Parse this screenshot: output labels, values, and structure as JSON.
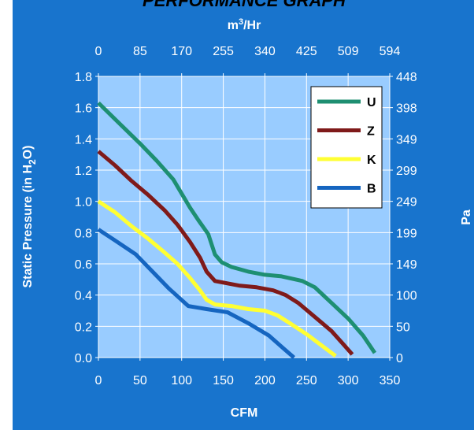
{
  "title": "PERFORMANCE GRAPH",
  "colors": {
    "frame_bg": "#1874CD",
    "plot_bg": "#99CCFF",
    "grid": "#ffffff",
    "legend_bg": "#ffffff"
  },
  "chart_data": {
    "type": "line",
    "title": "PERFORMANCE GRAPH",
    "xlabel": "CFM",
    "ylabel": "Static Pressure (in H2O)",
    "ylabel_parts": {
      "pre": "Static Pressure (in H",
      "sub": "2",
      "post": "O)"
    },
    "x2label": "m³/Hr",
    "x2label_parts": {
      "base": "m",
      "sup": "3",
      "rest": "/Hr"
    },
    "y2label": "Pa",
    "xlim": [
      0,
      350
    ],
    "ylim": [
      0,
      1.8
    ],
    "grid": true,
    "legend_position": "top-right",
    "x_ticks": [
      "0",
      "50",
      "100",
      "150",
      "200",
      "250",
      "300",
      "350"
    ],
    "y_ticks": [
      "0.0",
      "0.2",
      "0.4",
      "0.6",
      "0.8",
      "1.0",
      "1.2",
      "1.4",
      "1.6",
      "1.8"
    ],
    "x2_ticks": [
      "0",
      "85",
      "170",
      "255",
      "340",
      "425",
      "509",
      "594"
    ],
    "y2_ticks": [
      "0",
      "50",
      "100",
      "149",
      "199",
      "249",
      "299",
      "349",
      "398",
      "448"
    ],
    "series": [
      {
        "name": "U",
        "color": "#1E8F72",
        "points": [
          [
            0,
            1.63
          ],
          [
            25,
            1.5
          ],
          [
            50,
            1.37
          ],
          [
            70,
            1.26
          ],
          [
            90,
            1.14
          ],
          [
            100,
            1.05
          ],
          [
            110,
            0.96
          ],
          [
            120,
            0.88
          ],
          [
            132,
            0.79
          ],
          [
            140,
            0.66
          ],
          [
            148,
            0.61
          ],
          [
            160,
            0.58
          ],
          [
            180,
            0.55
          ],
          [
            200,
            0.53
          ],
          [
            220,
            0.52
          ],
          [
            245,
            0.49
          ],
          [
            260,
            0.45
          ],
          [
            280,
            0.35
          ],
          [
            300,
            0.25
          ],
          [
            318,
            0.14
          ],
          [
            332,
            0.03
          ]
        ]
      },
      {
        "name": "Z",
        "color": "#7F1A1A",
        "points": [
          [
            0,
            1.32
          ],
          [
            20,
            1.23
          ],
          [
            40,
            1.13
          ],
          [
            60,
            1.04
          ],
          [
            80,
            0.94
          ],
          [
            95,
            0.85
          ],
          [
            110,
            0.74
          ],
          [
            122,
            0.64
          ],
          [
            130,
            0.55
          ],
          [
            140,
            0.49
          ],
          [
            150,
            0.48
          ],
          [
            170,
            0.46
          ],
          [
            190,
            0.45
          ],
          [
            210,
            0.43
          ],
          [
            225,
            0.4
          ],
          [
            240,
            0.35
          ],
          [
            260,
            0.26
          ],
          [
            280,
            0.17
          ],
          [
            295,
            0.08
          ],
          [
            305,
            0.02
          ]
        ]
      },
      {
        "name": "K",
        "color": "#FFFF33",
        "points": [
          [
            0,
            1.0
          ],
          [
            20,
            0.93
          ],
          [
            40,
            0.84
          ],
          [
            60,
            0.76
          ],
          [
            80,
            0.67
          ],
          [
            95,
            0.6
          ],
          [
            110,
            0.51
          ],
          [
            122,
            0.43
          ],
          [
            130,
            0.37
          ],
          [
            140,
            0.34
          ],
          [
            160,
            0.33
          ],
          [
            180,
            0.31
          ],
          [
            200,
            0.3
          ],
          [
            215,
            0.27
          ],
          [
            230,
            0.22
          ],
          [
            250,
            0.15
          ],
          [
            270,
            0.07
          ],
          [
            285,
            0.01
          ]
        ]
      },
      {
        "name": "B",
        "color": "#1565C0",
        "points": [
          [
            0,
            0.82
          ],
          [
            20,
            0.75
          ],
          [
            45,
            0.66
          ],
          [
            65,
            0.55
          ],
          [
            85,
            0.44
          ],
          [
            108,
            0.33
          ],
          [
            130,
            0.31
          ],
          [
            155,
            0.29
          ],
          [
            180,
            0.22
          ],
          [
            205,
            0.14
          ],
          [
            222,
            0.06
          ],
          [
            235,
            0.0
          ]
        ]
      }
    ]
  }
}
